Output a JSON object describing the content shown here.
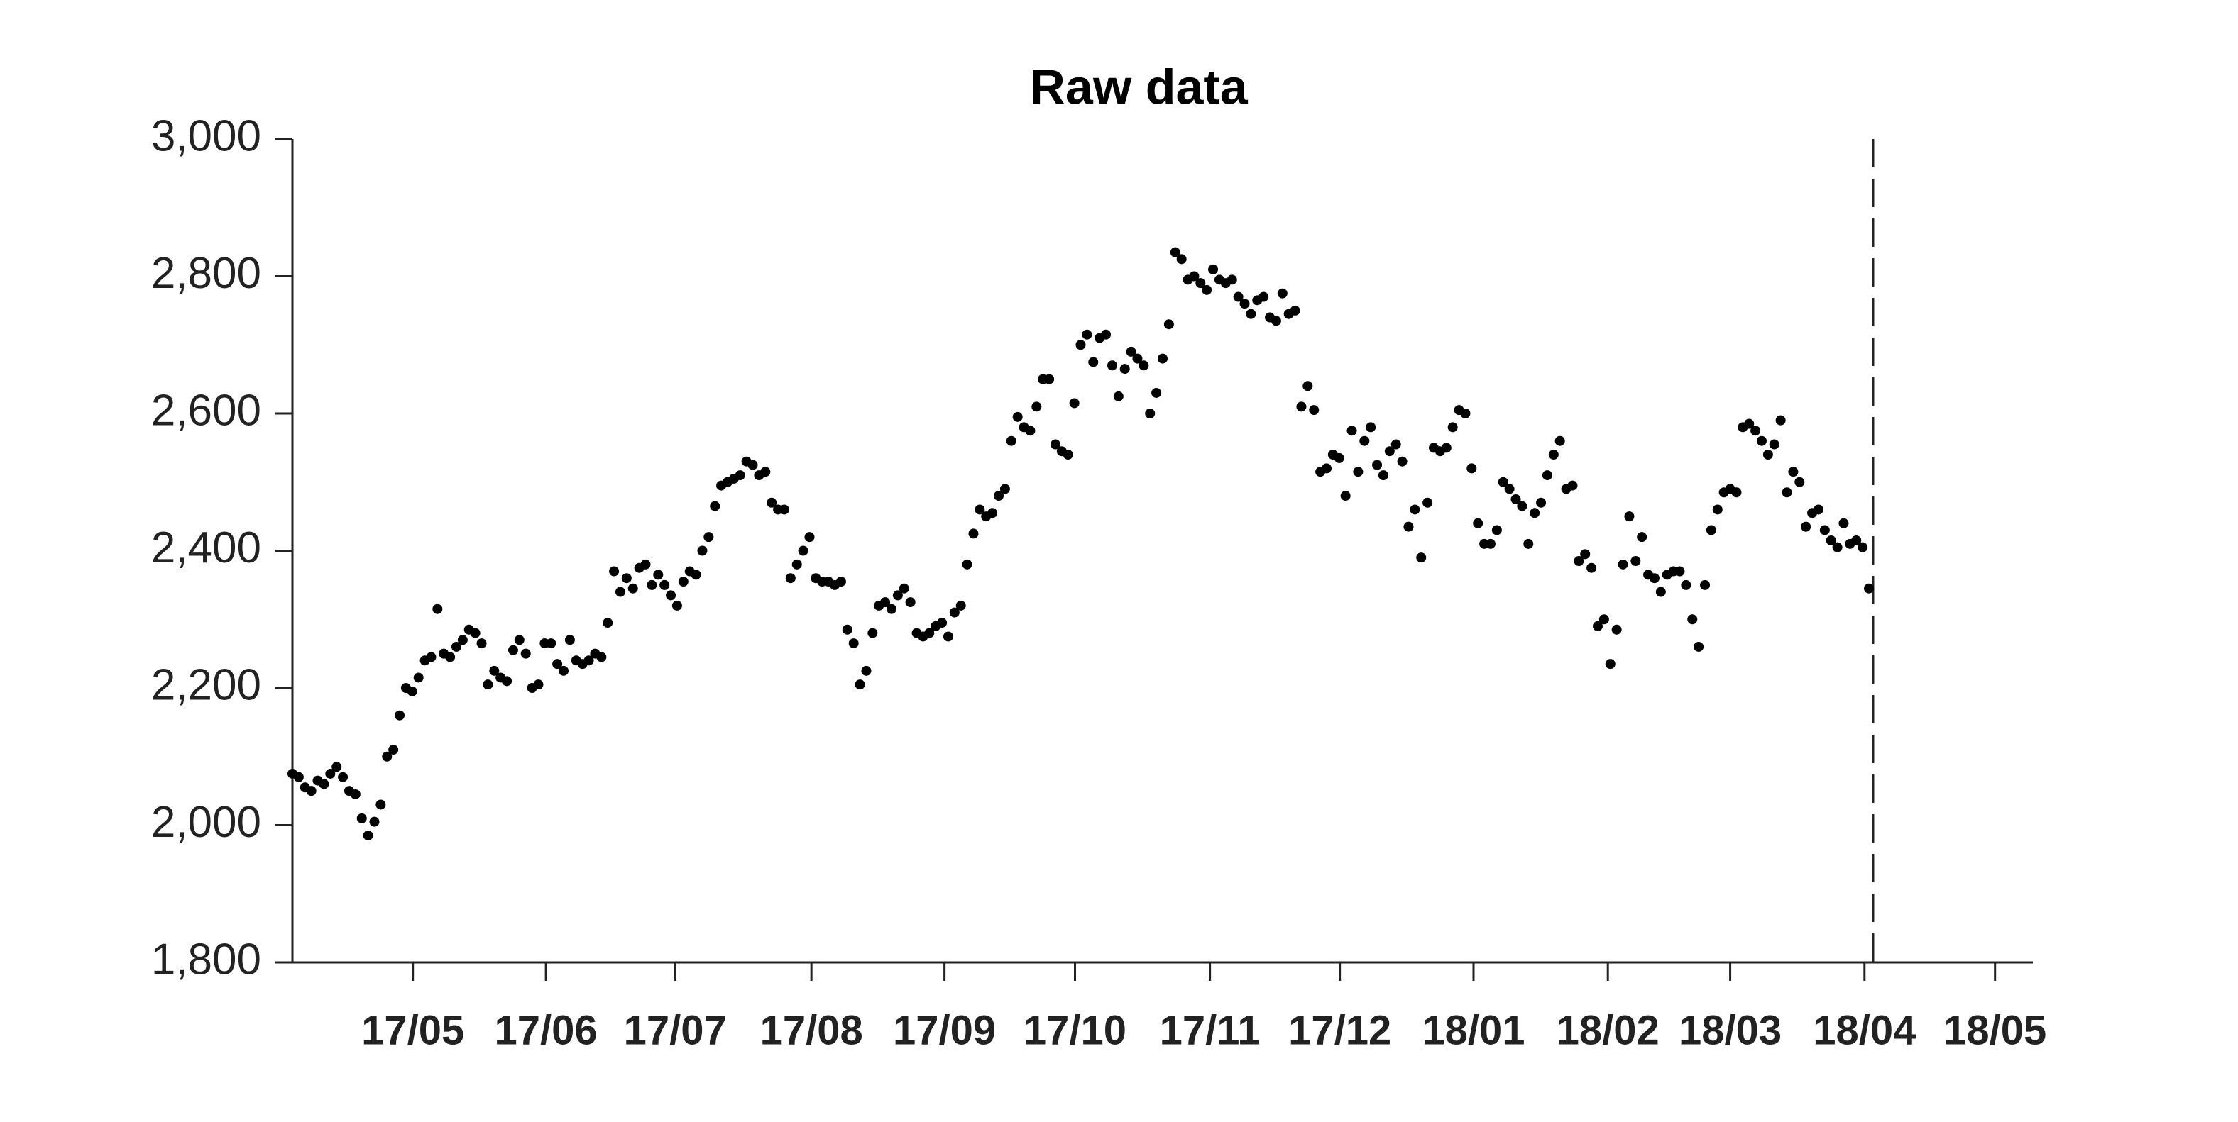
{
  "chart_data": {
    "type": "scatter",
    "title": "Raw data",
    "color": "#000000",
    "values": [
      2075,
      2070,
      2055,
      2050,
      2065,
      2060,
      2075,
      2085,
      2070,
      2050,
      2045,
      2010,
      1985,
      2005,
      2030,
      2100,
      2110,
      2160,
      2200,
      2195,
      2215,
      2240,
      2245,
      2315,
      2250,
      2245,
      2260,
      2270,
      2285,
      2280,
      2265,
      2205,
      2225,
      2215,
      2210,
      2255,
      2270,
      2250,
      2200,
      2205,
      2265,
      2265,
      2235,
      2225,
      2270,
      2240,
      2235,
      2240,
      2250,
      2245,
      2295,
      2370,
      2340,
      2360,
      2345,
      2375,
      2380,
      2350,
      2365,
      2350,
      2335,
      2320,
      2355,
      2370,
      2365,
      2400,
      2420,
      2465,
      2495,
      2500,
      2505,
      2510,
      2530,
      2525,
      2510,
      2515,
      2470,
      2460,
      2460,
      2360,
      2380,
      2400,
      2420,
      2360,
      2355,
      2355,
      2350,
      2355,
      2285,
      2265,
      2205,
      2225,
      2280,
      2320,
      2325,
      2315,
      2335,
      2345,
      2325,
      2280,
      2275,
      2280,
      2290,
      2295,
      2275,
      2310,
      2320,
      2380,
      2425,
      2460,
      2450,
      2455,
      2480,
      2490,
      2560,
      2595,
      2580,
      2575,
      2610,
      2650,
      2650,
      2555,
      2545,
      2540,
      2615,
      2700,
      2715,
      2675,
      2710,
      2715,
      2670,
      2625,
      2665,
      2690,
      2680,
      2670,
      2600,
      2630,
      2680,
      2730,
      2835,
      2825,
      2795,
      2800,
      2790,
      2780,
      2810,
      2795,
      2790,
      2795,
      2770,
      2760,
      2745,
      2765,
      2770,
      2740,
      2735,
      2775,
      2745,
      2750,
      2610,
      2640,
      2605,
      2515,
      2520,
      2540,
      2535,
      2480,
      2575,
      2515,
      2560,
      2580,
      2525,
      2510,
      2545,
      2555,
      2530,
      2435,
      2460,
      2390,
      2470,
      2550,
      2545,
      2550,
      2580,
      2605,
      2600,
      2520,
      2440,
      2410,
      2410,
      2430,
      2500,
      2490,
      2475,
      2465,
      2410,
      2455,
      2470,
      2510,
      2540,
      2560,
      2490,
      2495,
      2385,
      2395,
      2375,
      2290,
      2300,
      2235,
      2285,
      2380,
      2450,
      2385,
      2420,
      2365,
      2360,
      2340,
      2365,
      2370,
      2370,
      2350,
      2300,
      2260,
      2350,
      2430,
      2460,
      2485,
      2490,
      2485,
      2580,
      2585,
      2575,
      2560,
      2540,
      2555,
      2590,
      2485,
      2515,
      2500,
      2435,
      2455,
      2460,
      2430,
      2415,
      2405,
      2440,
      2410,
      2415,
      2405,
      2345
    ],
    "xlim": [
      0,
      276
    ],
    "xticks": [
      {
        "value": 19.1,
        "label": "17/05"
      },
      {
        "value": 40.2,
        "label": "17/06"
      },
      {
        "value": 60.7,
        "label": "17/07"
      },
      {
        "value": 82.3,
        "label": "17/08"
      },
      {
        "value": 103.4,
        "label": "17/09"
      },
      {
        "value": 124.1,
        "label": "17/10"
      },
      {
        "value": 145.5,
        "label": "17/11"
      },
      {
        "value": 166.1,
        "label": "17/12"
      },
      {
        "value": 187.3,
        "label": "18/01"
      },
      {
        "value": 208.6,
        "label": "18/02"
      },
      {
        "value": 228,
        "label": "18/03"
      },
      {
        "value": 249.3,
        "label": "18/04"
      },
      {
        "value": 270,
        "label": "18/05"
      }
    ],
    "ylim": [
      1800,
      3000
    ],
    "yticks": [
      {
        "value": 1800,
        "label": "1,800"
      },
      {
        "value": 2000,
        "label": "2,000"
      },
      {
        "value": 2200,
        "label": "2,200"
      },
      {
        "value": 2400,
        "label": "2,400"
      },
      {
        "value": 2600,
        "label": "2,600"
      },
      {
        "value": 2800,
        "label": "2,800"
      },
      {
        "value": 3000,
        "label": "3,000"
      }
    ],
    "vline": 250.7
  }
}
